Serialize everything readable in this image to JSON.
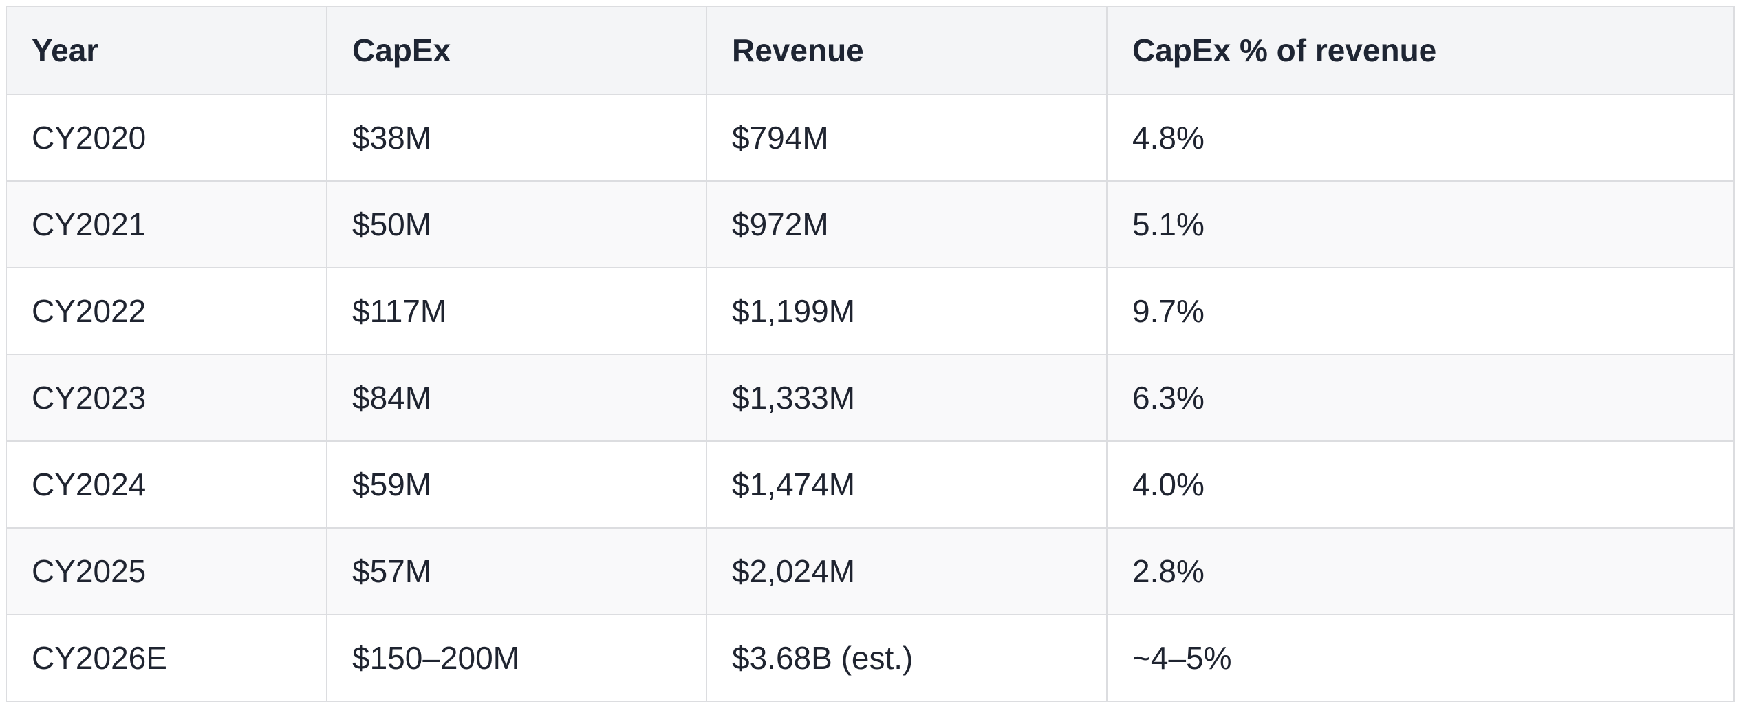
{
  "table": {
    "headers": [
      "Year",
      "CapEx",
      "Revenue",
      "CapEx % of revenue"
    ],
    "rows": [
      [
        "CY2020",
        "$38M",
        "$794M",
        "4.8%"
      ],
      [
        "CY2021",
        "$50M",
        "$972M",
        "5.1%"
      ],
      [
        "CY2022",
        "$117M",
        "$1,199M",
        "9.7%"
      ],
      [
        "CY2023",
        "$84M",
        "$1,333M",
        "6.3%"
      ],
      [
        "CY2024",
        "$59M",
        "$1,474M",
        "4.0%"
      ],
      [
        "CY2025",
        "$57M",
        "$2,024M",
        "2.8%"
      ],
      [
        "CY2026E",
        "$150–200M",
        "$3.68B (est.)",
        "~4–5%"
      ]
    ]
  },
  "colors": {
    "header_bg": "#f4f5f7",
    "row_alt_bg": "#f9f9fa",
    "border": "#dcdde0",
    "text": "#1f2430"
  }
}
